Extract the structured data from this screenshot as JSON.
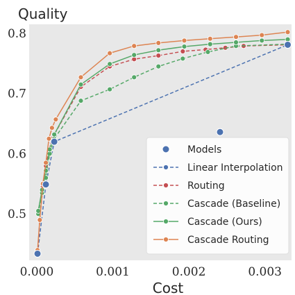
{
  "chart_data": {
    "type": "line",
    "xlabel": "Cost",
    "ylabel": "Quality",
    "xlim": [
      -0.0001,
      0.00335
    ],
    "ylim": [
      0.423,
      0.815
    ],
    "xticks": [
      0.0,
      0.001,
      0.002,
      0.003
    ],
    "xtick_labels": [
      "0.000",
      "0.001",
      "0.002",
      "0.003"
    ],
    "yticks": [
      0.5,
      0.6,
      0.7,
      0.8
    ],
    "ytick_labels": [
      "0.5",
      "0.6",
      "0.7",
      "0.8"
    ],
    "grid": false,
    "background": "#e8e8e8",
    "legend_position": "bottom-right",
    "series": [
      {
        "name": "Linear Interpolation",
        "color": "#4c72b0",
        "line": "dashed",
        "marker": true,
        "points": [
          [
            1e-05,
            0.434
          ],
          [
            0.00012,
            0.549
          ],
          [
            0.00023,
            0.62
          ],
          [
            0.0033,
            0.781
          ]
        ]
      },
      {
        "name": "Routing",
        "color": "#c44e52",
        "line": "dashed",
        "marker": true,
        "points": [
          [
            1e-05,
            0.434
          ],
          [
            4e-05,
            0.49
          ],
          [
            8e-05,
            0.545
          ],
          [
            0.00012,
            0.58
          ],
          [
            0.00016,
            0.605
          ],
          [
            0.0002,
            0.625
          ],
          [
            0.00058,
            0.711
          ],
          [
            0.00096,
            0.745
          ],
          [
            0.00128,
            0.757
          ],
          [
            0.0016,
            0.763
          ],
          [
            0.00192,
            0.77
          ],
          [
            0.00222,
            0.773
          ],
          [
            0.00248,
            0.776
          ],
          [
            0.00272,
            0.779
          ],
          [
            0.0033,
            0.781
          ]
        ]
      },
      {
        "name": "Cascade (Baseline)",
        "color": "#55a868",
        "line": "dashed",
        "marker": true,
        "points": [
          [
            2e-05,
            0.5
          ],
          [
            7e-05,
            0.535
          ],
          [
            0.00012,
            0.56
          ],
          [
            0.00017,
            0.6
          ],
          [
            0.00023,
            0.625
          ],
          [
            0.00058,
            0.688
          ],
          [
            0.00096,
            0.707
          ],
          [
            0.00128,
            0.727
          ],
          [
            0.0016,
            0.745
          ],
          [
            0.00192,
            0.758
          ],
          [
            0.00225,
            0.769
          ],
          [
            0.00262,
            0.779
          ],
          [
            0.0033,
            0.782
          ]
        ]
      },
      {
        "name": "Cascade (Ours)",
        "color": "#55a868",
        "line": "solid",
        "marker": true,
        "points": [
          [
            2e-05,
            0.505
          ],
          [
            7e-05,
            0.54
          ],
          [
            0.00012,
            0.572
          ],
          [
            0.00017,
            0.607
          ],
          [
            0.00023,
            0.632
          ],
          [
            0.00058,
            0.715
          ],
          [
            0.00096,
            0.749
          ],
          [
            0.00128,
            0.764
          ],
          [
            0.0016,
            0.772
          ],
          [
            0.00194,
            0.778
          ],
          [
            0.00228,
            0.782
          ],
          [
            0.00262,
            0.785
          ],
          [
            0.00296,
            0.788
          ],
          [
            0.0033,
            0.79
          ]
        ]
      },
      {
        "name": "Cascade Routing",
        "color": "#dd8452",
        "line": "solid",
        "marker": true,
        "points": [
          [
            1e-05,
            0.44
          ],
          [
            4e-05,
            0.49
          ],
          [
            8e-05,
            0.55
          ],
          [
            0.00012,
            0.585
          ],
          [
            0.00016,
            0.625
          ],
          [
            0.0002,
            0.643
          ],
          [
            0.00025,
            0.657
          ],
          [
            0.00058,
            0.727
          ],
          [
            0.00096,
            0.767
          ],
          [
            0.00128,
            0.779
          ],
          [
            0.0016,
            0.784
          ],
          [
            0.00194,
            0.788
          ],
          [
            0.00228,
            0.791
          ],
          [
            0.00262,
            0.794
          ],
          [
            0.00296,
            0.797
          ],
          [
            0.0033,
            0.802
          ]
        ]
      }
    ],
    "models": {
      "name": "Models",
      "color": "#4c72b0",
      "points": [
        [
          1e-05,
          0.434
        ],
        [
          0.00012,
          0.549
        ],
        [
          0.00023,
          0.62
        ],
        [
          0.00241,
          0.636
        ],
        [
          0.0033,
          0.781
        ]
      ]
    },
    "legend": [
      {
        "label": "Models",
        "kind": "dot",
        "color": "#4c72b0"
      },
      {
        "label": "Linear Interpolation",
        "kind": "dashed",
        "color": "#4c72b0"
      },
      {
        "label": "Routing",
        "kind": "dashed",
        "color": "#c44e52"
      },
      {
        "label": "Cascade (Baseline)",
        "kind": "dashed",
        "color": "#55a868"
      },
      {
        "label": "Cascade (Ours)",
        "kind": "solid",
        "color": "#55a868"
      },
      {
        "label": "Cascade Routing",
        "kind": "solid",
        "color": "#dd8452"
      }
    ]
  }
}
